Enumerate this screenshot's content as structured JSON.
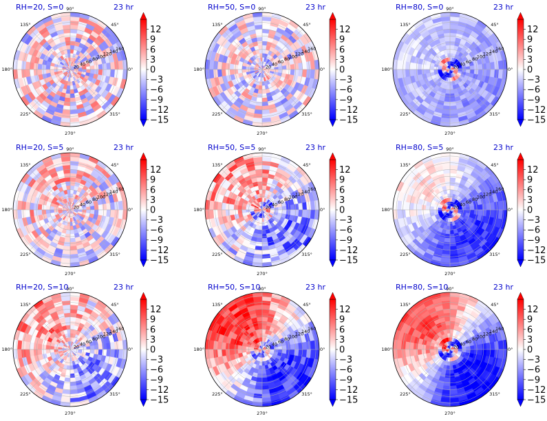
{
  "figure": {
    "time_label": "23 hr",
    "angle_ticks": [
      "0°",
      "45°",
      "90°",
      "135°",
      "180°",
      "225°",
      "270°",
      "315°"
    ],
    "radial_ticks": [
      "20",
      "40",
      "60",
      "80",
      "100",
      "120",
      "140",
      "160"
    ],
    "colorbar_ticks": [
      "12",
      "9",
      "6",
      "3",
      "0",
      "−3",
      "−6",
      "−9",
      "−12",
      "−15"
    ],
    "colors": {
      "positive": "#ff0000",
      "zero": "#ffffff",
      "negative": "#0000ff",
      "title": "#0000cc"
    }
  },
  "chart_data": [
    {
      "type": "heatmap",
      "subtype": "polar",
      "title": "RH=20, S=0",
      "time": "23 hr",
      "vlim": [
        -15,
        15
      ],
      "colorbar_ticks": [
        12,
        9,
        6,
        3,
        0,
        -3,
        -6,
        -9,
        -12,
        -15
      ],
      "radial_range": [
        0,
        170
      ],
      "pattern": {
        "bias": 0.0,
        "noise": 0.55,
        "core": 0,
        "shear_amp": 0
      }
    },
    {
      "type": "heatmap",
      "subtype": "polar",
      "title": "RH=50, S=0",
      "time": "23 hr",
      "vlim": [
        -15,
        15
      ],
      "colorbar_ticks": [
        12,
        9,
        6,
        3,
        0,
        -3,
        -6,
        -9,
        -12,
        -15
      ],
      "radial_range": [
        0,
        170
      ],
      "pattern": {
        "bias": -0.05,
        "noise": 0.5,
        "core": 0.2,
        "shear_amp": 0
      }
    },
    {
      "type": "heatmap",
      "subtype": "polar",
      "title": "RH=80, S=0",
      "time": "23 hr",
      "vlim": [
        -15,
        15
      ],
      "colorbar_ticks": [
        12,
        9,
        6,
        3,
        0,
        -3,
        -6,
        -9,
        -12,
        -15
      ],
      "radial_range": [
        0,
        170
      ],
      "pattern": {
        "bias": -0.3,
        "noise": 0.2,
        "core": 0.9,
        "shear_amp": 0.1
      }
    },
    {
      "type": "heatmap",
      "subtype": "polar",
      "title": "RH=20, S=5",
      "time": "23 hr",
      "vlim": [
        -15,
        15
      ],
      "colorbar_ticks": [
        12,
        9,
        6,
        3,
        0,
        -3,
        -6,
        -9,
        -12,
        -15
      ],
      "radial_range": [
        0,
        170
      ],
      "pattern": {
        "bias": 0.05,
        "noise": 0.5,
        "core": 0,
        "shear_amp": 0.15
      }
    },
    {
      "type": "heatmap",
      "subtype": "polar",
      "title": "RH=50, S=5",
      "time": "23 hr",
      "vlim": [
        -15,
        15
      ],
      "colorbar_ticks": [
        12,
        9,
        6,
        3,
        0,
        -3,
        -6,
        -9,
        -12,
        -15
      ],
      "radial_range": [
        0,
        170
      ],
      "pattern": {
        "bias": -0.05,
        "noise": 0.45,
        "core": 0.5,
        "shear_amp": 0.45
      }
    },
    {
      "type": "heatmap",
      "subtype": "polar",
      "title": "RH=80, S=5",
      "time": "23 hr",
      "vlim": [
        -15,
        15
      ],
      "colorbar_ticks": [
        12,
        9,
        6,
        3,
        0,
        -3,
        -6,
        -9,
        -12,
        -15
      ],
      "radial_range": [
        0,
        170
      ],
      "pattern": {
        "bias": -0.35,
        "noise": 0.2,
        "core": 0.95,
        "shear_amp": 0.45
      }
    },
    {
      "type": "heatmap",
      "subtype": "polar",
      "title": "RH=20, S=10",
      "time": "23 hr",
      "vlim": [
        -15,
        15
      ],
      "colorbar_ticks": [
        12,
        9,
        6,
        3,
        0,
        -3,
        -6,
        -9,
        -12,
        -15
      ],
      "radial_range": [
        0,
        170
      ],
      "pattern": {
        "bias": 0.0,
        "noise": 0.45,
        "core": 0,
        "shear_amp": 0.4
      }
    },
    {
      "type": "heatmap",
      "subtype": "polar",
      "title": "RH=50, S=10",
      "time": "23 hr",
      "vlim": [
        -15,
        15
      ],
      "colorbar_ticks": [
        12,
        9,
        6,
        3,
        0,
        -3,
        -6,
        -9,
        -12,
        -15
      ],
      "radial_range": [
        0,
        170
      ],
      "pattern": {
        "bias": 0.0,
        "noise": 0.3,
        "core": 0.6,
        "shear_amp": 0.8
      }
    },
    {
      "type": "heatmap",
      "subtype": "polar",
      "title": "RH=80, S=10",
      "time": "23 hr",
      "vlim": [
        -15,
        15
      ],
      "colorbar_ticks": [
        12,
        9,
        6,
        3,
        0,
        -3,
        -6,
        -9,
        -12,
        -15
      ],
      "radial_range": [
        0,
        170
      ],
      "pattern": {
        "bias": -0.15,
        "noise": 0.2,
        "core": 0.9,
        "shear_amp": 0.85
      }
    }
  ]
}
